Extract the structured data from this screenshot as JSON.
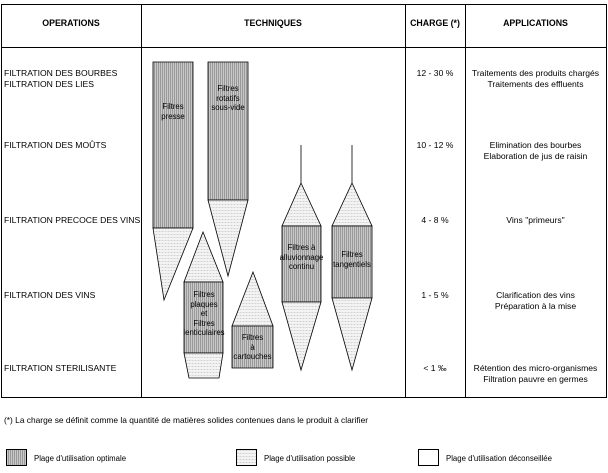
{
  "headers": {
    "operations": "OPERATIONS",
    "techniques": "TECHNIQUES",
    "charge": "CHARGE (*)",
    "applications": "APPLICATIONS"
  },
  "rows": [
    {
      "operation": [
        "FILTRATION DES BOURBES",
        "FILTRATION DES LIES"
      ],
      "charge": "12 - 30 %",
      "applications": [
        "Traitements des produits chargés",
        "Traitements des effluents"
      ]
    },
    {
      "operation": [
        "FILTRATION DES MOÛTS"
      ],
      "charge": "10 - 12 %",
      "applications": [
        "Elimination des bourbes",
        "Elaboration de jus de raisin"
      ]
    },
    {
      "operation": [
        "FILTRATION PRECOCE DES VINS"
      ],
      "charge": "4 - 8 %",
      "applications": [
        "Vins \"primeurs\""
      ]
    },
    {
      "operation": [
        "FILTRATION DES VINS"
      ],
      "charge": "1 - 5 %",
      "applications": [
        "Clarification des vins",
        "Préparation à la mise"
      ]
    },
    {
      "operation": [
        "FILTRATION STERILISANTE"
      ],
      "charge": "< 1 ‰",
      "applications": [
        "Rétention des micro-organismes",
        "Filtration pauvre en germes"
      ]
    }
  ],
  "techniques": [
    {
      "label": [
        "Filtres",
        "presse"
      ]
    },
    {
      "label": [
        "Filtres",
        "rotatifs",
        "sous-vide"
      ]
    },
    {
      "label": [
        "Filtres",
        "plaques",
        "et",
        "Filtres",
        "lenticulaires"
      ]
    },
    {
      "label": [
        "Filtres",
        "à",
        "cartouches"
      ]
    },
    {
      "label": [
        "Filtres à",
        "alluvionnage",
        "continu"
      ]
    },
    {
      "label": [
        "Filtres",
        "tangentiels"
      ]
    }
  ],
  "footnote": "(*) La charge se définit comme la quantité de matières solides contenues dans le produit à clarifier",
  "legend": {
    "optimal": "Plage d'utilisation optimale",
    "possible": "Plage d'utilisation possible",
    "deconseillee": "Plage d'utilisation déconseillée"
  },
  "colors": {
    "optimal_fill": "#b8b8b8",
    "possible_fill": "#eaeaea",
    "line": "#000000"
  }
}
